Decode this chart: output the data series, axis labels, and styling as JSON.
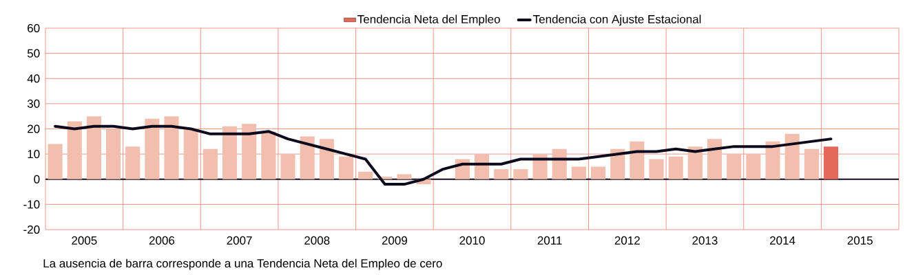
{
  "chart_data": {
    "type": "bar",
    "x": [
      2005.125,
      2005.375,
      2005.625,
      2005.875,
      2006.125,
      2006.375,
      2006.625,
      2006.875,
      2007.125,
      2007.375,
      2007.625,
      2007.875,
      2008.125,
      2008.375,
      2008.625,
      2008.875,
      2009.125,
      2009.375,
      2009.625,
      2009.875,
      2010.125,
      2010.375,
      2010.625,
      2010.875,
      2011.125,
      2011.375,
      2011.625,
      2011.875,
      2012.125,
      2012.375,
      2012.625,
      2012.875,
      2013.125,
      2013.375,
      2013.625,
      2013.875,
      2014.125,
      2014.375,
      2014.625,
      2014.875,
      2015.125
    ],
    "series": [
      {
        "name": "Tendencia Neta del Empleo",
        "color": "#e5695a",
        "colors": [
          "#f2bfae",
          "#f2bfae",
          "#f2bfae",
          "#f2bfae",
          "#f2bfae",
          "#f2bfae",
          "#f2bfae",
          "#f2bfae",
          "#f2bfae",
          "#f2bfae",
          "#f2bfae",
          "#f2bfae",
          "#f2bfae",
          "#f2bfae",
          "#f2bfae",
          "#f2bfae",
          "#f2bfae",
          "#f2bfae",
          "#f2bfae",
          "#f2bfae",
          "#f2bfae",
          "#f2bfae",
          "#f2bfae",
          "#f2bfae",
          "#f2bfae",
          "#f2bfae",
          "#f2bfae",
          "#f2bfae",
          "#f2bfae",
          "#f2bfae",
          "#f2bfae",
          "#f2bfae",
          "#f2bfae",
          "#f2bfae",
          "#f2bfae",
          "#f2bfae",
          "#f2bfae",
          "#f2bfae",
          "#f2bfae",
          "#f2bfae",
          "#e5695a"
        ],
        "values": [
          14,
          23,
          25,
          20,
          13,
          24,
          25,
          20,
          12,
          21,
          22,
          19,
          10,
          17,
          16,
          9,
          3,
          1,
          2,
          -2,
          0,
          8,
          10,
          4,
          4,
          10,
          12,
          5,
          5,
          12,
          15,
          8,
          9,
          13,
          16,
          10,
          10,
          15,
          18,
          12,
          13
        ]
      },
      {
        "name": "Tendencia con Ajuste Estacional",
        "type": "line",
        "color": "#0c0a1c",
        "values": [
          21,
          20,
          21,
          21,
          20,
          21,
          21,
          20,
          18,
          18,
          18,
          19,
          16,
          14,
          12,
          10,
          8,
          -2,
          -2,
          0,
          4,
          6,
          6,
          6,
          8,
          8,
          8,
          8,
          9,
          10,
          11,
          11,
          12,
          11,
          12,
          13,
          13,
          13,
          14,
          15,
          16
        ]
      }
    ],
    "xlim": [
      2005,
      2016
    ],
    "xticks": [
      {
        "value": 2005,
        "label": null
      },
      {
        "value": 2006,
        "label": null
      },
      {
        "value": 2007,
        "label": null
      },
      {
        "value": 2008,
        "label": null
      },
      {
        "value": 2009,
        "label": null
      },
      {
        "value": 2010,
        "label": null
      },
      {
        "value": 2011,
        "label": null
      },
      {
        "value": 2012,
        "label": null
      },
      {
        "value": 2013,
        "label": null
      },
      {
        "value": 2014,
        "label": null
      },
      {
        "value": 2015,
        "label": null
      },
      {
        "value": 2016,
        "label": null
      },
      {
        "value": 2005.5,
        "label": "2005"
      },
      {
        "value": 2006.5,
        "label": "2006"
      },
      {
        "value": 2007.5,
        "label": "2007"
      },
      {
        "value": 2008.5,
        "label": "2008"
      },
      {
        "value": 2009.5,
        "label": "2009"
      },
      {
        "value": 2010.5,
        "label": "2010"
      },
      {
        "value": 2011.5,
        "label": "2011"
      },
      {
        "value": 2012.5,
        "label": "2012"
      },
      {
        "value": 2013.5,
        "label": "2013"
      },
      {
        "value": 2014.5,
        "label": "2014"
      },
      {
        "value": 2015.5,
        "label": "2015"
      }
    ],
    "ylim": [
      -20,
      60
    ],
    "yticks": [
      -20,
      -10,
      0,
      10,
      20,
      30,
      40,
      50,
      60
    ],
    "ref_lines": [
      {
        "axis": "y",
        "value": 0,
        "color": "#120a1e"
      }
    ],
    "grid": true,
    "legend": "top",
    "annotations": [
      "La ausencia de barra corresponde a una Tendencia Neta del Empleo de cero"
    ]
  }
}
